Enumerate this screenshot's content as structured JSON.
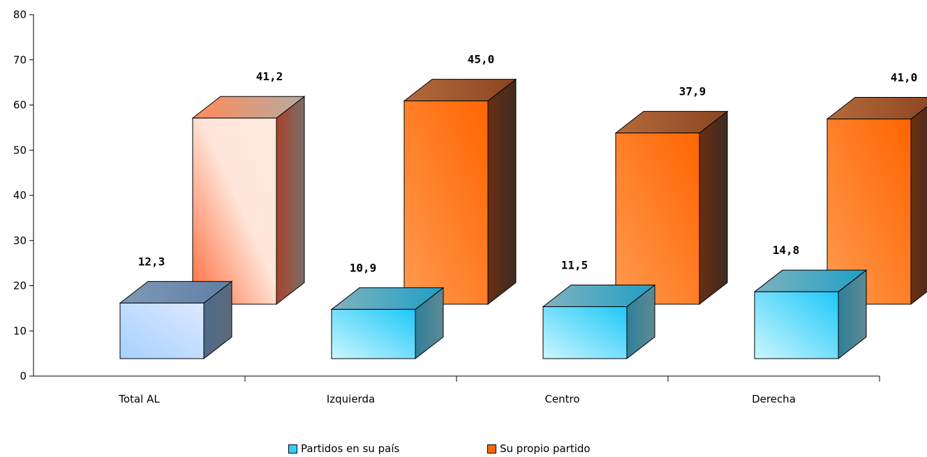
{
  "chart_data": {
    "type": "bar",
    "categories": [
      "Total AL",
      "Izquierda",
      "Centro",
      "Derecha"
    ],
    "series": [
      {
        "name": "Partidos en su país",
        "values": [
          12.3,
          10.9,
          11.5,
          14.8
        ],
        "color": "#33CCFF"
      },
      {
        "name": "Su propio partido",
        "values": [
          41.2,
          45.0,
          37.9,
          41.0
        ],
        "color": "#FF6600"
      }
    ],
    "data_labels": [
      [
        "12,3",
        "10,9",
        "11,5",
        "14,8"
      ],
      [
        "41,2",
        "45,0",
        "37,9",
        "41,0"
      ]
    ],
    "ylim": [
      0,
      80
    ],
    "yticks": [
      "0",
      "10",
      "20",
      "30",
      "40",
      "50",
      "60",
      "70",
      "80"
    ],
    "grid": false,
    "style": "3d",
    "legend_position": "bottom"
  }
}
